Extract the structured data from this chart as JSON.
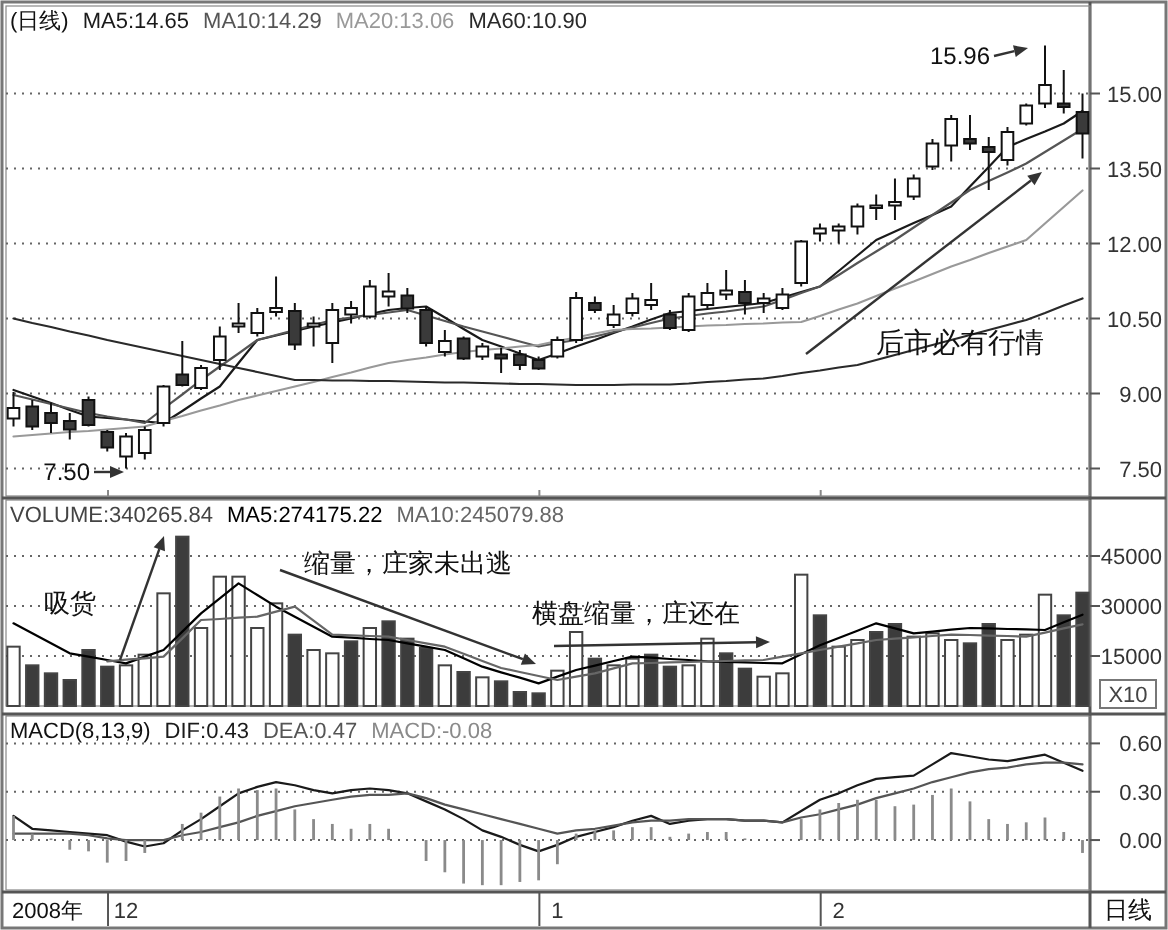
{
  "chart_data": [
    {
      "type": "candlestick",
      "title": "(日线)",
      "legend": "top left",
      "tick_labels": "y",
      "grid": "y",
      "ylim": [
        6.95,
        16.75
      ],
      "yticks": [
        {
          "value": 7.5,
          "label": "7.50"
        },
        {
          "value": 9,
          "label": "9.00"
        },
        {
          "value": 10.5,
          "label": "10.50"
        },
        {
          "value": 12,
          "label": "12.00"
        },
        {
          "value": 13.5,
          "label": "13.50"
        },
        {
          "value": 15,
          "label": "15.00"
        }
      ],
      "categories": [
        null,
        null,
        null,
        null,
        null,
        null,
        "12",
        null,
        null,
        null,
        null,
        null,
        null,
        null,
        null,
        null,
        null,
        null,
        null,
        null,
        null,
        null,
        null,
        null,
        null,
        null,
        null,
        null,
        null,
        "1",
        null,
        null,
        null,
        null,
        null,
        null,
        null,
        null,
        null,
        null,
        null,
        null,
        null,
        null,
        "2",
        null,
        null,
        null,
        null,
        null,
        null,
        null,
        null,
        null,
        null,
        null,
        null,
        null
      ],
      "ohlc": [
        [
          8.5,
          9.03,
          8.34,
          8.71
        ],
        [
          8.74,
          8.87,
          8.27,
          8.34
        ],
        [
          8.61,
          8.81,
          8.21,
          8.41
        ],
        [
          8.45,
          8.61,
          8.08,
          8.28
        ],
        [
          8.87,
          8.94,
          8.34,
          8.37
        ],
        [
          8.23,
          8.27,
          7.84,
          7.92
        ],
        [
          7.74,
          8.21,
          7.5,
          8.14
        ],
        [
          7.81,
          8.34,
          7.68,
          8.27
        ],
        [
          8.41,
          9.17,
          8.34,
          9.14
        ],
        [
          9.38,
          10.05,
          9.14,
          9.17
        ],
        [
          9.11,
          9.57,
          9.07,
          9.51
        ],
        [
          9.67,
          10.34,
          9.47,
          10.14
        ],
        [
          10.34,
          10.81,
          10.21,
          10.4
        ],
        [
          10.21,
          10.71,
          10.14,
          10.61
        ],
        [
          10.63,
          11.34,
          10.54,
          10.71
        ],
        [
          10.65,
          10.81,
          9.87,
          9.98
        ],
        [
          10.34,
          10.54,
          9.94,
          10.4
        ],
        [
          10.01,
          10.81,
          9.61,
          10.67
        ],
        [
          10.58,
          10.85,
          10.4,
          10.71
        ],
        [
          10.54,
          11.27,
          10.5,
          11.14
        ],
        [
          10.94,
          11.41,
          10.74,
          11.04
        ],
        [
          10.96,
          11.11,
          10.61,
          10.7
        ],
        [
          10.67,
          10.74,
          9.94,
          10.01
        ],
        [
          9.83,
          10.27,
          9.74,
          10.05
        ],
        [
          10.1,
          10.14,
          9.67,
          9.7
        ],
        [
          9.74,
          10.01,
          9.67,
          9.94
        ],
        [
          9.78,
          9.91,
          9.41,
          9.7
        ],
        [
          9.78,
          9.87,
          9.47,
          9.57
        ],
        [
          9.67,
          9.74,
          9.47,
          9.5
        ],
        [
          9.74,
          10.14,
          9.7,
          10.07
        ],
        [
          10.07,
          11.03,
          10.01,
          10.91
        ],
        [
          10.81,
          10.94,
          10.61,
          10.67
        ],
        [
          10.37,
          10.77,
          10.31,
          10.58
        ],
        [
          10.61,
          11.01,
          10.54,
          10.9
        ],
        [
          10.77,
          11.21,
          10.67,
          10.87
        ],
        [
          10.58,
          10.67,
          10.27,
          10.31
        ],
        [
          10.27,
          11.01,
          10.23,
          10.94
        ],
        [
          10.77,
          11.21,
          10.71,
          11.01
        ],
        [
          10.98,
          11.47,
          10.87,
          11.06
        ],
        [
          11.03,
          11.27,
          10.58,
          10.81
        ],
        [
          10.81,
          11.01,
          10.61,
          10.9
        ],
        [
          10.71,
          11.11,
          10.67,
          10.98
        ],
        [
          11.21,
          12.07,
          11.14,
          12.04
        ],
        [
          12.2,
          12.4,
          12.04,
          12.3
        ],
        [
          12.26,
          12.4,
          12.0,
          12.34
        ],
        [
          12.34,
          12.8,
          12.18,
          12.74
        ],
        [
          12.71,
          12.98,
          12.47,
          12.76
        ],
        [
          12.76,
          13.3,
          12.47,
          12.83
        ],
        [
          12.94,
          13.38,
          12.87,
          13.3
        ],
        [
          13.54,
          14.09,
          13.47,
          14.0
        ],
        [
          13.96,
          14.57,
          13.64,
          14.49
        ],
        [
          14.09,
          14.57,
          13.87,
          14.0
        ],
        [
          13.93,
          14.13,
          13.07,
          13.83
        ],
        [
          13.67,
          14.33,
          13.56,
          14.23
        ],
        [
          14.4,
          14.8,
          14.36,
          14.76
        ],
        [
          14.8,
          15.96,
          14.71,
          15.17
        ],
        [
          14.8,
          15.47,
          14.6,
          14.73
        ],
        [
          14.63,
          15.0,
          13.7,
          14.2
        ]
      ],
      "series": [
        {
          "name": "MA5:14.65",
          "type": "line",
          "color": "#1a1a1a",
          "values": [
            9.07,
            8.94,
            8.81,
            8.67,
            8.54,
            8.51,
            8.48,
            8.44,
            8.41,
            8.65,
            8.9,
            9.14,
            9.61,
            10.07,
            10.16,
            10.25,
            10.34,
            10.42,
            10.5,
            10.59,
            10.67,
            10.71,
            10.74,
            10.52,
            10.29,
            10.07,
            9.94,
            9.8,
            9.67,
            9.8,
            9.94,
            10.07,
            10.21,
            10.34,
            10.48,
            10.61,
            10.65,
            10.69,
            10.73,
            10.77,
            10.81,
            10.92,
            11.03,
            11.14,
            11.45,
            11.76,
            12.07,
            12.24,
            12.41,
            12.57,
            12.74,
            13.14,
            13.53,
            13.93,
            14.09,
            14.24,
            14.4,
            14.65
          ]
        },
        {
          "name": "MA10:14.29",
          "type": "line",
          "color": "#555555",
          "values": [
            8.97,
            8.88,
            8.79,
            8.7,
            8.61,
            8.54,
            8.48,
            8.41,
            8.7,
            8.98,
            9.27,
            9.54,
            9.8,
            10.07,
            10.17,
            10.27,
            10.37,
            10.47,
            10.52,
            10.57,
            10.62,
            10.67,
            10.56,
            10.45,
            10.34,
            10.24,
            10.14,
            10.04,
            9.94,
            10.01,
            10.07,
            10.14,
            10.23,
            10.32,
            10.41,
            10.5,
            10.55,
            10.6,
            10.64,
            10.69,
            10.74,
            10.87,
            11.01,
            11.14,
            11.37,
            11.61,
            11.84,
            12.07,
            12.32,
            12.57,
            12.82,
            13.07,
            13.25,
            13.42,
            13.6,
            13.83,
            14.06,
            14.29
          ]
        },
        {
          "name": "MA20:13.06",
          "type": "line",
          "color": "#999999",
          "values": [
            8.14,
            8.17,
            8.2,
            8.23,
            8.25,
            8.28,
            8.31,
            8.34,
            8.45,
            8.55,
            8.66,
            8.76,
            8.87,
            8.96,
            9.05,
            9.14,
            9.23,
            9.33,
            9.42,
            9.52,
            9.61,
            9.67,
            9.72,
            9.78,
            9.83,
            9.87,
            9.9,
            9.94,
            9.97,
            10.05,
            10.12,
            10.2,
            10.27,
            10.29,
            10.3,
            10.32,
            10.34,
            10.36,
            10.37,
            10.39,
            10.4,
            10.42,
            10.43,
            10.55,
            10.68,
            10.8,
            10.95,
            11.1,
            11.24,
            11.39,
            11.54,
            11.67,
            11.81,
            11.94,
            12.07,
            12.4,
            12.73,
            13.06
          ]
        },
        {
          "name": "MA60:10.90",
          "type": "line",
          "color": "#2a2a2a",
          "values": [
            10.5,
            10.41,
            10.33,
            10.24,
            10.16,
            10.07,
            9.99,
            9.91,
            9.83,
            9.75,
            9.67,
            9.59,
            9.51,
            9.43,
            9.35,
            9.27,
            9.27,
            9.26,
            9.26,
            9.25,
            9.25,
            9.24,
            9.23,
            9.22,
            9.22,
            9.21,
            9.2,
            9.19,
            9.19,
            9.18,
            9.17,
            9.17,
            9.17,
            9.18,
            9.18,
            9.18,
            9.2,
            9.23,
            9.25,
            9.28,
            9.3,
            9.35,
            9.41,
            9.46,
            9.52,
            9.57,
            9.67,
            9.77,
            9.87,
            9.97,
            10.07,
            10.17,
            10.27,
            10.37,
            10.47,
            10.61,
            10.76,
            10.9
          ]
        }
      ],
      "annotations": [
        "7.50",
        "15.96",
        "后市必有行情"
      ]
    },
    {
      "type": "bar",
      "legend": "top left",
      "tick_labels": "y",
      "grid": "y",
      "ylabel": "X10",
      "ylim": [
        0,
        61800
      ],
      "yticks": [
        15000,
        30000,
        45000
      ],
      "categories": [
        null,
        null,
        null,
        null,
        null,
        null,
        "12",
        null,
        null,
        null,
        null,
        null,
        null,
        null,
        null,
        null,
        null,
        null,
        null,
        null,
        null,
        null,
        null,
        null,
        null,
        null,
        null,
        null,
        null,
        "1",
        null,
        null,
        null,
        null,
        null,
        null,
        null,
        null,
        null,
        null,
        null,
        null,
        null,
        null,
        "2",
        null,
        null,
        null,
        null,
        null,
        null,
        null,
        null,
        null,
        null,
        null,
        null,
        null
      ],
      "series": [
        {
          "name": "VOLUME:340265.84",
          "type": "bar",
          "color": "#444444",
          "values": [
            17800,
            12200,
            9800,
            7800,
            16800,
            11800,
            12200,
            15400,
            33800,
            50800,
            23400,
            38800,
            38800,
            23400,
            30800,
            21400,
            16800,
            15800,
            19400,
            23400,
            25400,
            20200,
            17400,
            12200,
            10200,
            8600,
            7400,
            4200,
            3800,
            10600,
            22200,
            14200,
            12200,
            14200,
            15400,
            11800,
            12200,
            20200,
            15800,
            11200,
            8800,
            9800,
            39400,
            27200,
            17800,
            19800,
            22200,
            24600,
            20800,
            21800,
            19800,
            18800,
            24600,
            19800,
            21400,
            33400,
            27200,
            34000
          ],
          "colors": [
            "#ffffff",
            "#3c3c3c",
            "#3c3c3c",
            "#3c3c3c",
            "#3c3c3c",
            "#3c3c3c",
            "#ffffff",
            "#ffffff",
            "#ffffff",
            "#3c3c3c",
            "#ffffff",
            "#ffffff",
            "#ffffff",
            "#ffffff",
            "#ffffff",
            "#3c3c3c",
            "#ffffff",
            "#ffffff",
            "#3c3c3c",
            "#ffffff",
            "#3c3c3c",
            "#3c3c3c",
            "#3c3c3c",
            "#ffffff",
            "#3c3c3c",
            "#ffffff",
            "#3c3c3c",
            "#3c3c3c",
            "#3c3c3c",
            "#ffffff",
            "#ffffff",
            "#3c3c3c",
            "#ffffff",
            "#ffffff",
            "#3c3c3c",
            "#3c3c3c",
            "#ffffff",
            "#ffffff",
            "#3c3c3c",
            "#3c3c3c",
            "#ffffff",
            "#ffffff",
            "#ffffff",
            "#3c3c3c",
            "#ffffff",
            "#ffffff",
            "#3c3c3c",
            "#3c3c3c",
            "#ffffff",
            "#ffffff",
            "#ffffff",
            "#3c3c3c",
            "#3c3c3c",
            "#ffffff",
            "#ffffff",
            "#ffffff",
            "#3c3c3c",
            "#3c3c3c"
          ]
        },
        {
          "name": "MA5:274175.22",
          "type": "line",
          "color": "#000000",
          "values": [
            24800,
            21800,
            18800,
            15800,
            14800,
            13800,
            12800,
            14800,
            16800,
            22300,
            27800,
            32300,
            36800,
            33300,
            29800,
            26800,
            23800,
            20800,
            20500,
            20100,
            19800,
            18800,
            17800,
            16800,
            14300,
            11800,
            10100,
            8500,
            6800,
            8800,
            10800,
            12100,
            13500,
            14800,
            14500,
            14100,
            13800,
            13400,
            13200,
            13100,
            12900,
            12800,
            15500,
            18200,
            20400,
            22600,
            24800,
            23300,
            21800,
            22300,
            22900,
            23400,
            23300,
            23100,
            23000,
            22800,
            25100,
            27400
          ]
        },
        {
          "name": "MA10:245079.88",
          "type": "line",
          "color": "#666666",
          "values": [
            null,
            null,
            null,
            null,
            null,
            13400,
            13900,
            14300,
            14800,
            20300,
            25800,
            26100,
            26500,
            26800,
            28300,
            29800,
            25600,
            21400,
            21200,
            21000,
            20800,
            19800,
            18800,
            17800,
            15700,
            13500,
            11400,
            10200,
            9000,
            7800,
            8800,
            9800,
            11300,
            12800,
            12900,
            13100,
            13200,
            13400,
            13500,
            13700,
            13800,
            14800,
            15800,
            16800,
            17800,
            18800,
            19800,
            20200,
            20600,
            21000,
            21400,
            21300,
            21100,
            21000,
            20800,
            22000,
            23300,
            24500
          ]
        }
      ],
      "annotations": [
        "吸货",
        "缩量，庄家未出逃",
        "横盘缩量，庄还在"
      ]
    },
    {
      "type": "line",
      "title": "MACD(8,13,9)",
      "legend": "top left",
      "grid": "y",
      "ylim": [
        -0.31,
        0.77
      ],
      "yticks": [
        {
          "value": 0,
          "label": "0.00"
        },
        {
          "value": 0.3,
          "label": "0.30"
        },
        {
          "value": 0.6,
          "label": "0.60"
        }
      ],
      "categories": [
        null,
        null,
        null,
        null,
        null,
        null,
        "12",
        null,
        null,
        null,
        null,
        null,
        null,
        null,
        null,
        null,
        null,
        null,
        null,
        null,
        null,
        null,
        null,
        null,
        null,
        null,
        null,
        null,
        null,
        "1",
        null,
        null,
        null,
        null,
        null,
        null,
        null,
        null,
        null,
        null,
        null,
        null,
        null,
        null,
        "2",
        null,
        null,
        null,
        null,
        null,
        null,
        null,
        null,
        null,
        null,
        null,
        null,
        null
      ],
      "series": [
        {
          "name": "DIF:0.43",
          "type": "line",
          "color": "#1a1a1a",
          "values": [
            0.15,
            0.07,
            0.06,
            0.05,
            0.04,
            0.03,
            -0.01,
            -0.04,
            -0.02,
            0.06,
            0.13,
            0.21,
            0.29,
            0.33,
            0.36,
            0.34,
            0.31,
            0.29,
            0.31,
            0.32,
            0.31,
            0.29,
            0.24,
            0.19,
            0.13,
            0.06,
            0.02,
            -0.03,
            -0.07,
            -0.03,
            0.02,
            0.05,
            0.08,
            0.12,
            0.15,
            0.1,
            0.12,
            0.13,
            0.13,
            0.12,
            0.12,
            0.11,
            0.18,
            0.25,
            0.29,
            0.34,
            0.38,
            0.39,
            0.4,
            0.47,
            0.54,
            0.52,
            0.5,
            0.49,
            0.51,
            0.53,
            0.48,
            0.43
          ]
        },
        {
          "name": "DEA:0.47",
          "type": "line",
          "color": "#555555",
          "values": [
            0.04,
            0.04,
            0.04,
            0.04,
            0.03,
            0.01,
            0.0,
            0.0,
            0.0,
            0.03,
            0.05,
            0.08,
            0.11,
            0.15,
            0.18,
            0.21,
            0.23,
            0.25,
            0.27,
            0.28,
            0.28,
            0.29,
            0.26,
            0.22,
            0.19,
            0.16,
            0.13,
            0.1,
            0.07,
            0.04,
            0.06,
            0.07,
            0.09,
            0.11,
            0.12,
            0.12,
            0.13,
            0.13,
            0.13,
            0.12,
            0.12,
            0.11,
            0.14,
            0.16,
            0.19,
            0.22,
            0.26,
            0.29,
            0.32,
            0.36,
            0.39,
            0.42,
            0.44,
            0.45,
            0.47,
            0.48,
            0.48,
            0.47
          ]
        },
        {
          "name": "MACD:-0.08",
          "type": "bar",
          "color": "#8a8a8a",
          "values": [
            0.15,
            0.04,
            0.01,
            -0.06,
            -0.07,
            -0.14,
            -0.13,
            -0.08,
            null,
            0.1,
            0.17,
            0.27,
            0.32,
            0.31,
            0.32,
            0.19,
            0.13,
            0.1,
            0.07,
            0.1,
            0.07,
            null,
            -0.13,
            -0.2,
            -0.27,
            -0.28,
            -0.28,
            -0.26,
            -0.25,
            -0.15,
            0.04,
            0.06,
            0.06,
            0.08,
            0.08,
            0.02,
            0.04,
            0.05,
            0.05,
            0.01,
            null,
            null,
            0.13,
            0.19,
            0.23,
            0.25,
            0.25,
            0.21,
            0.22,
            0.28,
            0.32,
            0.24,
            0.13,
            0.1,
            0.11,
            0.14,
            0.05,
            -0.08
          ]
        }
      ],
      "annotations": [
        "2008年",
        "日线"
      ]
    }
  ]
}
